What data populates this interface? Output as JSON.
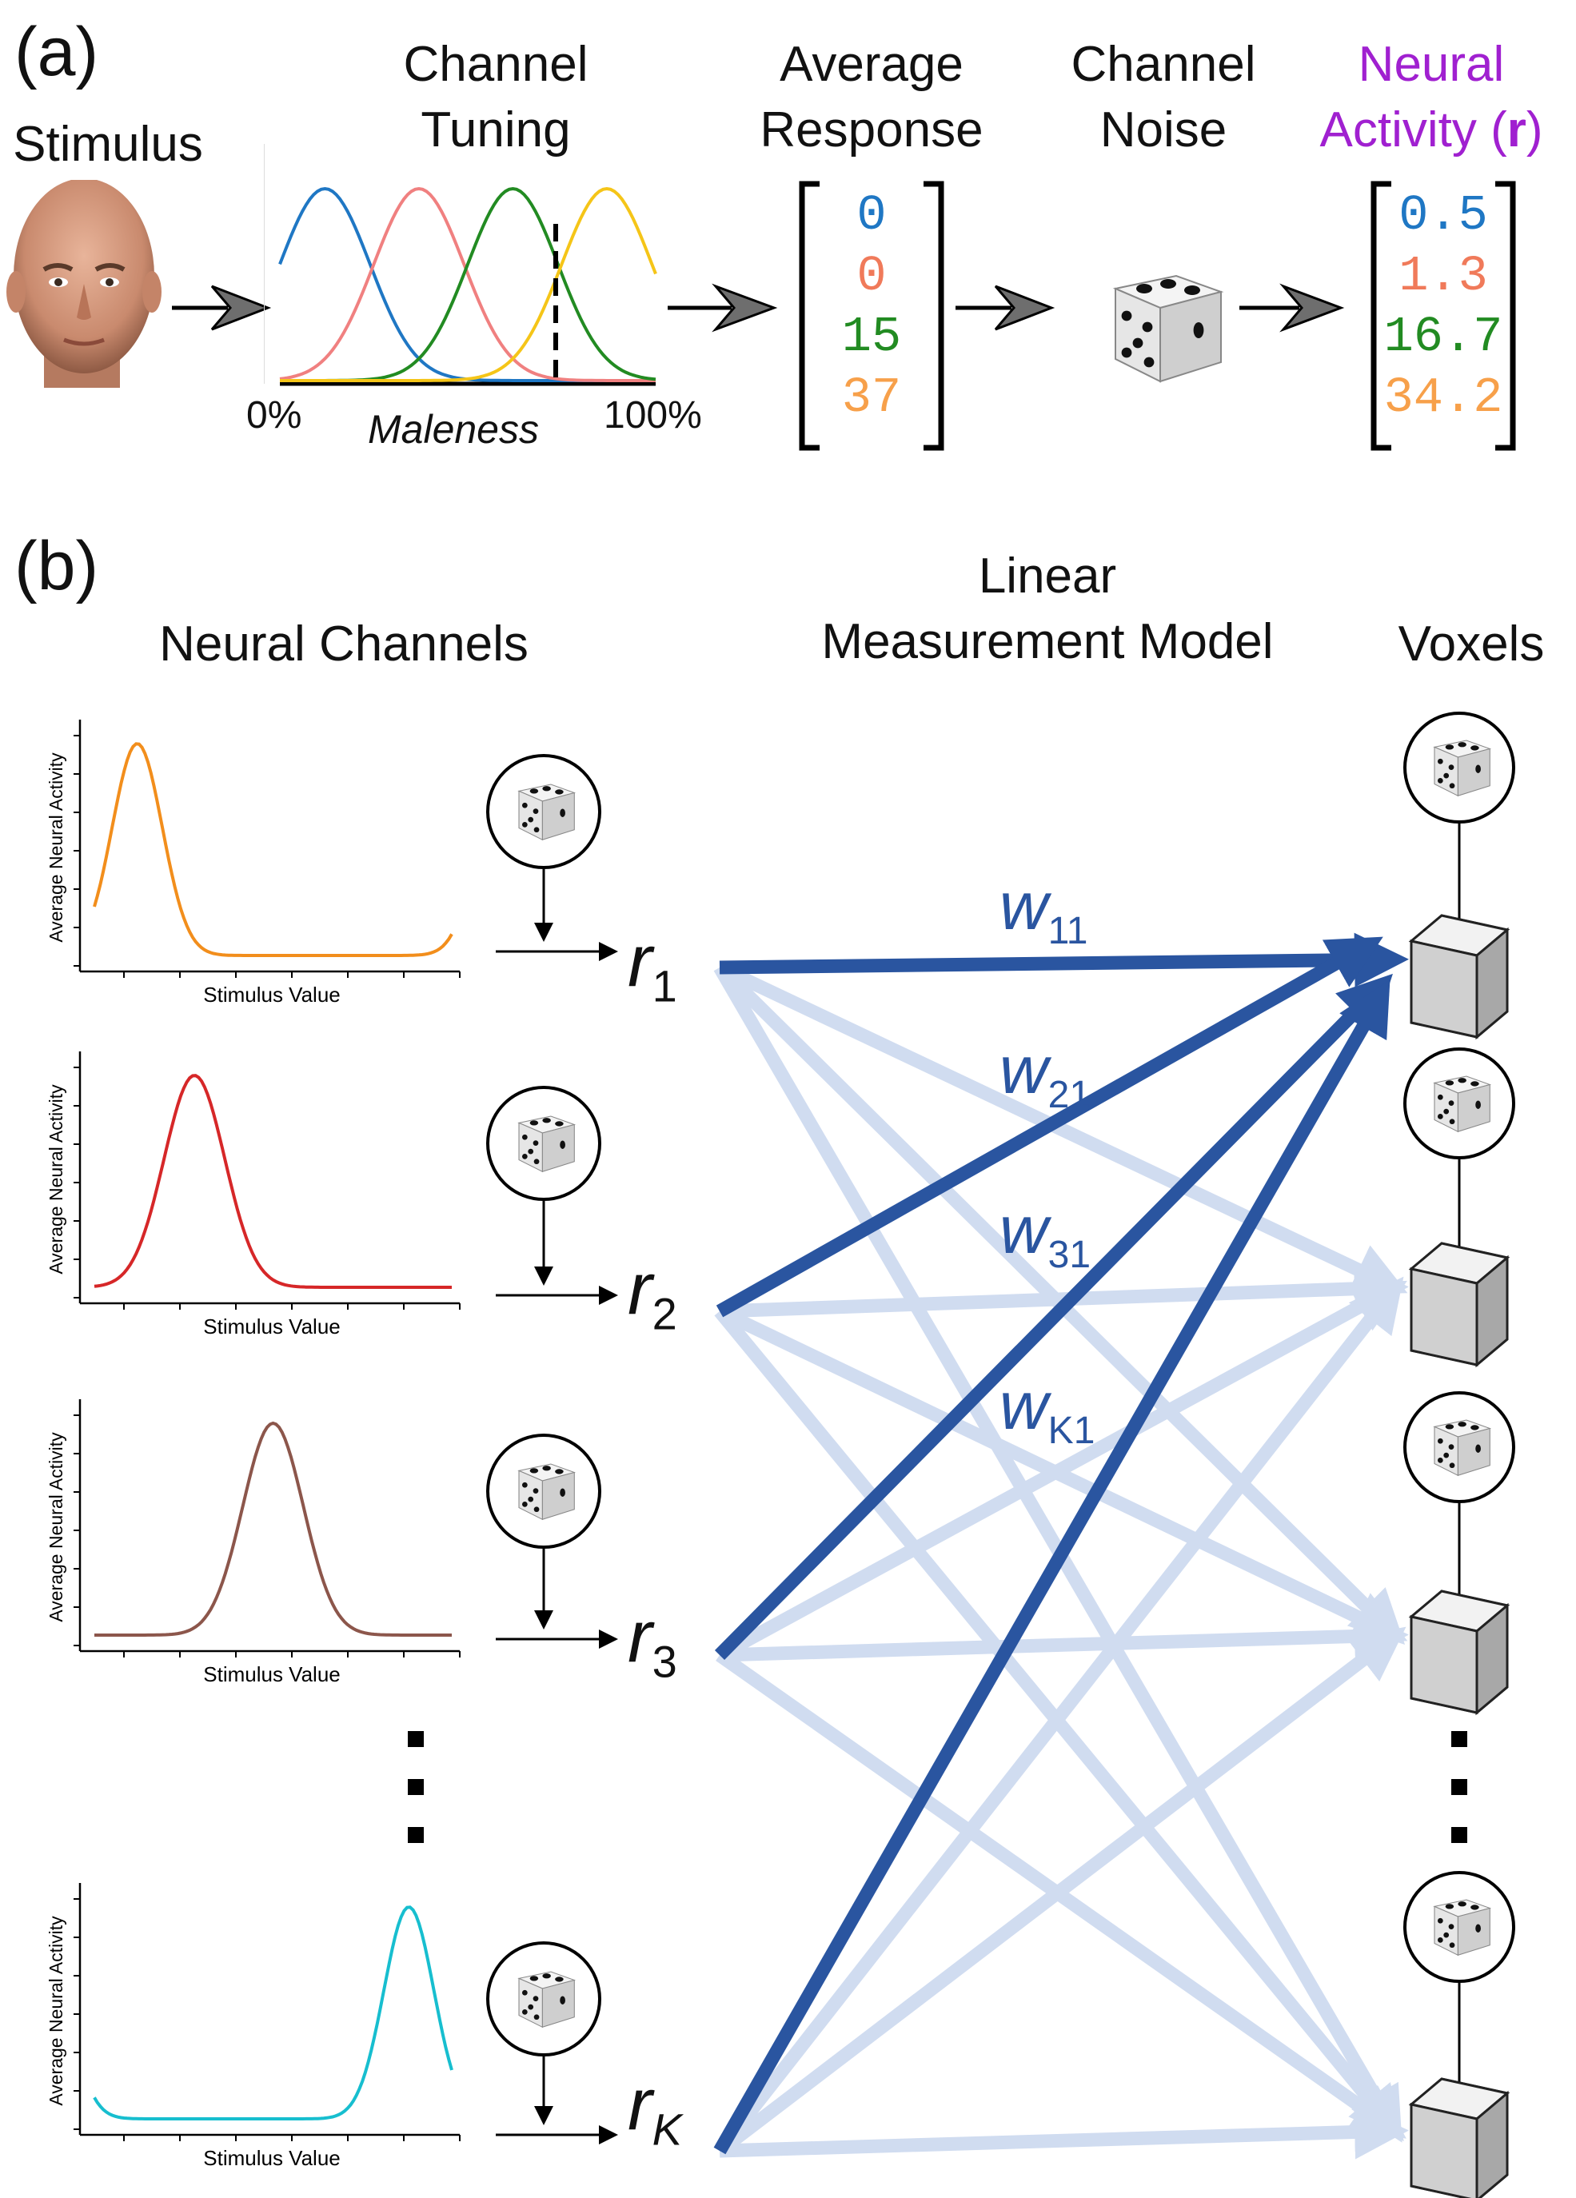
{
  "panel_a": {
    "label": "(a)",
    "stimulus_label": "Stimulus",
    "channel_tuning": [
      "Channel",
      "Tuning"
    ],
    "axis_min": "0%",
    "axis_max": "100%",
    "axis_label": "Maleness",
    "average_response": [
      "Average",
      "Response"
    ],
    "response_values": [
      "0",
      "0",
      "15",
      "37"
    ],
    "channel_noise": [
      "Channel",
      "Noise"
    ],
    "neural_activity": [
      "Neural",
      "Activity (",
      "r",
      ")"
    ],
    "activity_values": [
      "0.5",
      "1.3",
      "16.7",
      "34.2"
    ],
    "colors": {
      "ch1": "#1f77c4",
      "ch2": "#f08080",
      "ch3": "#228b22",
      "ch4": "#f5c518",
      "orange": "#f7a04a",
      "salmon": "#f07a5a",
      "purple": "#a020d0"
    }
  },
  "panel_b": {
    "label": "(b)",
    "neural_channels": "Neural Channels",
    "linear_model": [
      "Linear",
      "Measurement Model"
    ],
    "voxels": "Voxels",
    "y_axis": "Average Neural Activity",
    "x_axis": "Stimulus Value",
    "channels": [
      {
        "r": "r",
        "sub": "1",
        "color": "#f28e1c"
      },
      {
        "r": "r",
        "sub": "2",
        "color": "#d62728"
      },
      {
        "r": "r",
        "sub": "3",
        "color": "#8c564b"
      },
      {
        "r": "r",
        "sub": "K",
        "color": "#17becf"
      }
    ],
    "weights": [
      {
        "w": "w",
        "sub": "11"
      },
      {
        "w": "w",
        "sub": "21"
      },
      {
        "w": "w",
        "sub": "31"
      },
      {
        "w": "w",
        "sub": "K1"
      }
    ],
    "colors": {
      "strong": "#2a55a0",
      "faint": "#d0dcf0"
    }
  }
}
